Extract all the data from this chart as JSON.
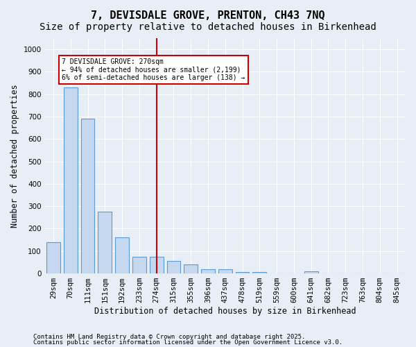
{
  "title1": "7, DEVISDALE GROVE, PRENTON, CH43 7NQ",
  "title2": "Size of property relative to detached houses in Birkenhead",
  "xlabel": "Distribution of detached houses by size in Birkenhead",
  "ylabel": "Number of detached properties",
  "categories": [
    "29sqm",
    "70sqm",
    "111sqm",
    "151sqm",
    "192sqm",
    "233sqm",
    "274sqm",
    "315sqm",
    "355sqm",
    "396sqm",
    "437sqm",
    "478sqm",
    "519sqm",
    "559sqm",
    "600sqm",
    "641sqm",
    "682sqm",
    "723sqm",
    "763sqm",
    "804sqm",
    "845sqm"
  ],
  "values": [
    140,
    830,
    690,
    275,
    160,
    75,
    75,
    55,
    40,
    20,
    20,
    5,
    5,
    0,
    0,
    8,
    0,
    0,
    0,
    0,
    0
  ],
  "bar_color": "#c5d8f0",
  "bar_edge_color": "#5a9ad5",
  "vline_x": 6,
  "vline_color": "#cc0000",
  "annotation_text": "7 DEVISDALE GROVE: 270sqm\n← 94% of detached houses are smaller (2,199)\n6% of semi-detached houses are larger (138) →",
  "annotation_box_color": "#cc0000",
  "ylim": [
    0,
    1050
  ],
  "yticks": [
    0,
    100,
    200,
    300,
    400,
    500,
    600,
    700,
    800,
    900,
    1000
  ],
  "background_color": "#e8eef5",
  "plot_bg_color": "#e8eef5",
  "footer1": "Contains HM Land Registry data © Crown copyright and database right 2025.",
  "footer2": "Contains public sector information licensed under the Open Government Licence v3.0.",
  "title_fontsize": 11,
  "subtitle_fontsize": 10,
  "tick_fontsize": 7.5,
  "label_fontsize": 8.5
}
